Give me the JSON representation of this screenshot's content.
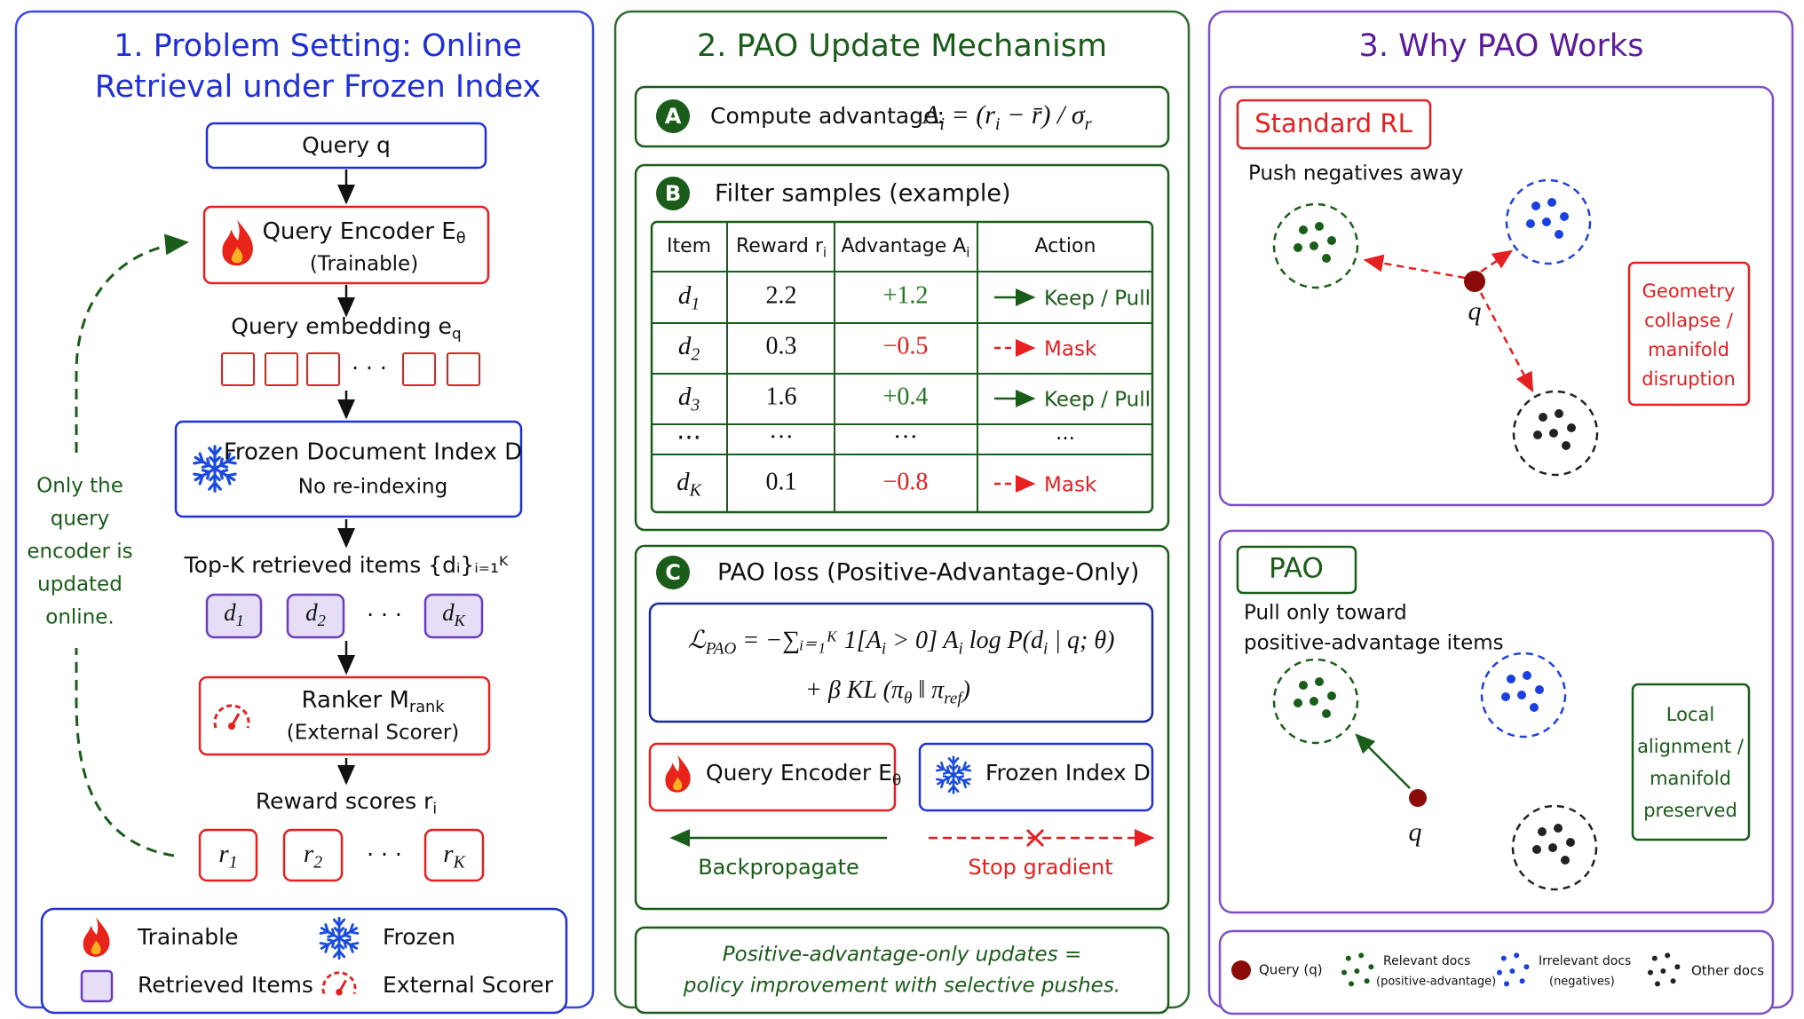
{
  "panel1": {
    "title": [
      "1. Problem Setting: Online",
      "Retrieval under Frozen Index"
    ],
    "query": "Query q",
    "encoder": [
      "Query Encoder E",
      "θ"
    ],
    "encoder_note": "(Trainable)",
    "embedding": [
      "Query embedding e",
      "q"
    ],
    "embedding_gap": "· · ·",
    "index": "Frozen Document Index D",
    "index_note": "No re-indexing",
    "topk": "Top-K retrieved items {dᵢ}ᵢ₌₁ᴷ",
    "items": [
      [
        "d",
        "1"
      ],
      [
        "d",
        "2"
      ],
      [
        "d",
        "K"
      ]
    ],
    "items_gap": "· · ·",
    "ranker": [
      "Ranker M",
      "rank"
    ],
    "ranker_note": "(External Scorer)",
    "reward": [
      "Reward scores r",
      "i"
    ],
    "rewards": [
      [
        "r",
        "1"
      ],
      [
        "r",
        "2"
      ],
      [
        "r",
        "K"
      ]
    ],
    "rewards_gap": "· · ·",
    "side_note": [
      "Only the",
      "query",
      "encoder is",
      "updated",
      "online."
    ],
    "legend": {
      "trainable": "Trainable",
      "frozen": "Frozen",
      "retrieved": "Retrieved Items",
      "scorer": "External Scorer"
    }
  },
  "panel2": {
    "title": "2. PAO Update Mechanism",
    "step_a": {
      "badge": "A",
      "label": "Compute advantage:",
      "formula": [
        "A",
        "i",
        " = (r",
        "i",
        " − r̄) / σ",
        "r"
      ]
    },
    "step_b": {
      "badge": "B",
      "label": "Filter samples (example)",
      "header": [
        [
          "Item"
        ],
        [
          "Reward r",
          "i"
        ],
        [
          "Advantage A",
          "i"
        ],
        [
          "Action"
        ]
      ],
      "rows": [
        {
          "item": [
            "d",
            "1"
          ],
          "reward": "2.2",
          "advantage": "+1.2",
          "action": "Keep / Pull"
        },
        {
          "item": [
            "d",
            "2"
          ],
          "reward": "0.3",
          "advantage": "−0.5",
          "action": "Mask"
        },
        {
          "item": [
            "d",
            "3"
          ],
          "reward": "1.6",
          "advantage": "+0.4",
          "action": "Keep / Pull"
        },
        {
          "item": [
            "···"
          ],
          "reward": "···",
          "advantage": "···",
          "action": "···"
        },
        {
          "item": [
            "d",
            "K"
          ],
          "reward": "0.1",
          "advantage": "−0.8",
          "action": "Mask"
        }
      ]
    },
    "step_c": {
      "badge": "C",
      "label": "PAO loss  (Positive-Advantage-Only)",
      "loss": [
        [
          "ℒ",
          "PAO",
          " = −∑ᵢ₌₁ᴷ 1[A",
          "i",
          " > 0] A",
          "i",
          " log P(d",
          "i",
          " | q; θ)"
        ],
        [
          "+ β KL (π",
          "θ",
          " ‖ π",
          "ref",
          ")"
        ]
      ],
      "encoder": [
        "Query Encoder E",
        "θ"
      ],
      "index": "Frozen Index D",
      "backprop": "Backpropagate",
      "stop": "Stop gradient"
    },
    "footer": [
      "Positive-advantage-only updates =",
      "policy improvement with selective pushes."
    ]
  },
  "panel3": {
    "title": "3. Why PAO Works",
    "standard": {
      "label": "Standard RL",
      "desc": [
        "Push negatives away"
      ],
      "query": "q",
      "note": [
        "Geometry",
        "collapse /",
        "manifold",
        "disruption"
      ]
    },
    "pao": {
      "label": "PAO",
      "desc": [
        "Pull only toward",
        "positive-advantage items"
      ],
      "query": "q",
      "note": [
        "Local",
        "alignment /",
        "manifold",
        "preserved"
      ]
    },
    "legend": {
      "query": "Query (q)",
      "relevant": "Relevant docs",
      "relevant_note": "(positive-advantage)",
      "irrelevant": "Irrelevant docs",
      "irrelevant_note": "(negatives)",
      "other": "Other docs"
    }
  }
}
